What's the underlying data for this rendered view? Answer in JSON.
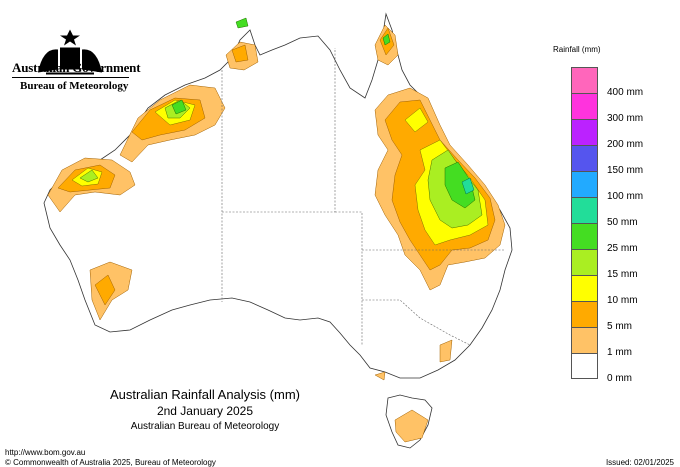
{
  "header": {
    "government": "Australian Government",
    "agency": "Bureau of Meteorology"
  },
  "legend": {
    "title": "Rainfall (mm)",
    "items": [
      {
        "label": "",
        "color": "#ff66bb"
      },
      {
        "label": "400 mm",
        "color": "#ff33dd"
      },
      {
        "label": "300 mm",
        "color": "#bb22ff"
      },
      {
        "label": "200 mm",
        "color": "#5555ee"
      },
      {
        "label": "150 mm",
        "color": "#22aaff"
      },
      {
        "label": "100 mm",
        "color": "#22dd99"
      },
      {
        "label": "50 mm",
        "color": "#44dd22"
      },
      {
        "label": "25 mm",
        "color": "#aaee22"
      },
      {
        "label": "15 mm",
        "color": "#ffff00"
      },
      {
        "label": "10 mm",
        "color": "#ffaa00"
      },
      {
        "label": "5 mm",
        "color": "#ffc266"
      },
      {
        "label": "1 mm",
        "color": "#ffffff"
      },
      {
        "label": "0 mm",
        "color": ""
      }
    ]
  },
  "map": {
    "title": "Australian Rainfall Analysis (mm)",
    "date": "2nd January 2025",
    "source": "Australian Bureau of Meteorology"
  },
  "footer": {
    "url": "http://www.bom.gov.au",
    "copyright": "© Commonwealth of Australia 2025, Bureau of Meteorology",
    "issued": "Issued: 02/01/2025"
  }
}
